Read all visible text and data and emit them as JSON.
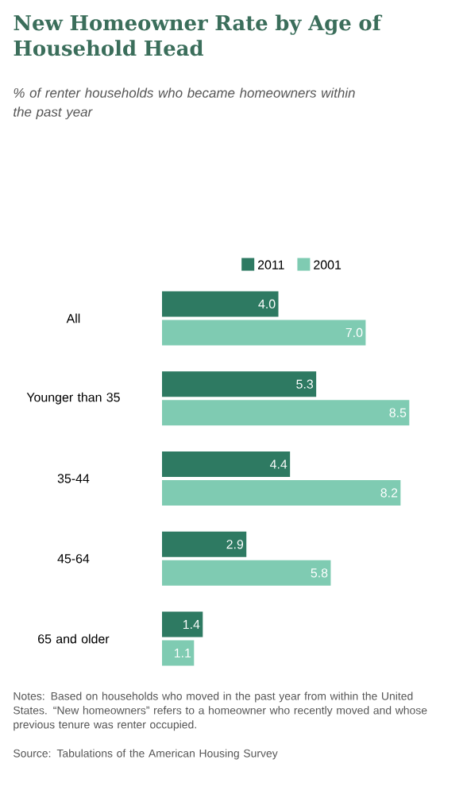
{
  "chart_data": {
    "type": "bar",
    "orientation": "horizontal",
    "title": "New Homeowner Rate by Age of Household Head",
    "subtitle": "% of renter households who became homeowners within the past year",
    "categories": [
      "All",
      "Younger than 35",
      "35-44",
      "45-64",
      "65 and older"
    ],
    "series": [
      {
        "name": "2011",
        "color": "#2e7a62",
        "values": [
          4.0,
          5.3,
          4.4,
          2.9,
          1.4
        ],
        "value_labels": [
          "4.0",
          "5.3",
          "4.4",
          "2.9",
          "1.4"
        ]
      },
      {
        "name": "2001",
        "color": "#7fcbb2",
        "values": [
          7.0,
          8.5,
          8.2,
          5.8,
          1.1
        ],
        "value_labels": [
          "7.0",
          "8.5",
          "8.2",
          "5.8",
          "1.1"
        ]
      }
    ],
    "legend": "top",
    "annotations": [
      "Notes: Based on households who moved in the past year from within the United States. “New homeowners” refers to a homeowner who recently moved and whose previous tenure was renter occupied.",
      "Source: Tabulations of the American Housing Survey"
    ]
  }
}
